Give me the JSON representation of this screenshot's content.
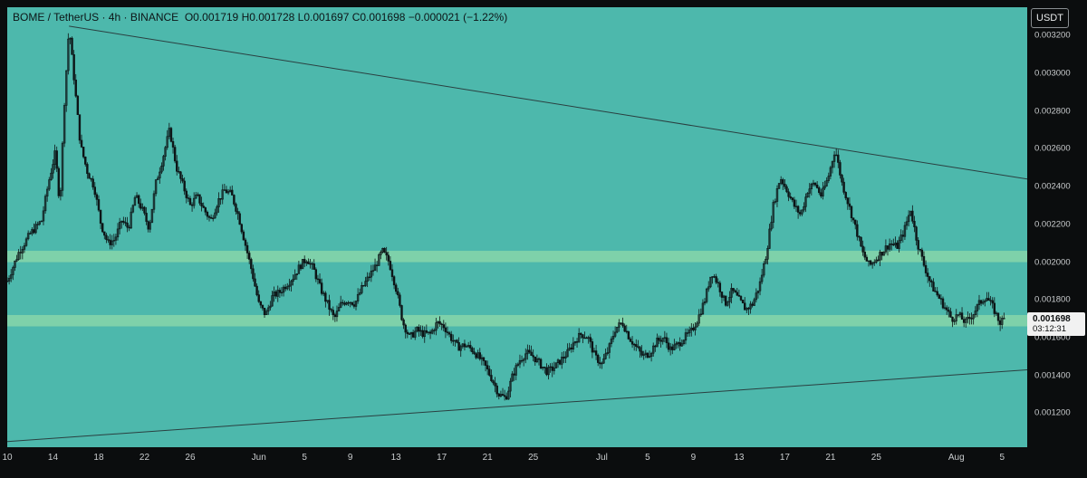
{
  "header": {
    "symbol": "BOME / TetherUS · 4h · BINANCE",
    "open": "O0.001719",
    "high": "H0.001728",
    "low": "L0.001697",
    "close": "C0.001698",
    "change": "−0.000021 (−1.22%)"
  },
  "currency_label": "USDT",
  "price_tag": {
    "price": "0.001698",
    "countdown": "03:12:31"
  },
  "colors": {
    "background": "#4db8ac",
    "zone": "#8fdaa9",
    "candles": "#0d1517",
    "trendline": "#2a3f40"
  },
  "chart_data": {
    "type": "candlestick",
    "ylim": [
      0.00102,
      0.00335
    ],
    "yticks": [
      "0.003200",
      "0.003000",
      "0.002800",
      "0.002600",
      "0.002400",
      "0.002200",
      "0.002000",
      "0.001800",
      "0.001600",
      "0.001400",
      "0.001200"
    ],
    "ytick_values": [
      0.0032,
      0.003,
      0.0028,
      0.0026,
      0.0024,
      0.0022,
      0.002,
      0.0018,
      0.0016,
      0.0014,
      0.0012
    ],
    "xtick_labels": [
      "10",
      "14",
      "18",
      "22",
      "26",
      "Jun",
      "5",
      "9",
      "13",
      "17",
      "21",
      "25",
      "Jul",
      "5",
      "9",
      "13",
      "17",
      "21",
      "25",
      "Aug",
      "5"
    ],
    "xtick_days": [
      0,
      4,
      8,
      12,
      16,
      22,
      26,
      30,
      34,
      38,
      42,
      46,
      52,
      56,
      60,
      64,
      68,
      72,
      76,
      83,
      87
    ],
    "x_range_days": [
      0,
      89.2
    ],
    "zones": [
      {
        "from": 0.002,
        "to": 0.00206
      },
      {
        "from": 0.00166,
        "to": 0.00172
      }
    ],
    "trendlines": [
      {
        "from": [
          5.4,
          0.00325
        ],
        "to": [
          89.2,
          0.00244
        ]
      },
      {
        "from": [
          0,
          0.00105
        ],
        "to": [
          89.2,
          0.00143
        ]
      }
    ],
    "price_path": [
      [
        0,
        0.0019
      ],
      [
        1,
        0.00205
      ],
      [
        2,
        0.00215
      ],
      [
        3,
        0.00222
      ],
      [
        3.6,
        0.00242
      ],
      [
        4.2,
        0.00258
      ],
      [
        4.6,
        0.0023
      ],
      [
        5.0,
        0.00285
      ],
      [
        5.4,
        0.00325
      ],
      [
        5.8,
        0.003
      ],
      [
        6.4,
        0.00262
      ],
      [
        7,
        0.00248
      ],
      [
        7.6,
        0.0024
      ],
      [
        8.2,
        0.0022
      ],
      [
        8.8,
        0.0021
      ],
      [
        9.4,
        0.00212
      ],
      [
        10,
        0.00222
      ],
      [
        10.6,
        0.00218
      ],
      [
        11.2,
        0.00235
      ],
      [
        11.8,
        0.00228
      ],
      [
        12.4,
        0.00218
      ],
      [
        13,
        0.00242
      ],
      [
        13.6,
        0.00255
      ],
      [
        14.2,
        0.0027
      ],
      [
        14.8,
        0.0025
      ],
      [
        15.4,
        0.0024
      ],
      [
        16,
        0.0023
      ],
      [
        16.6,
        0.00235
      ],
      [
        17.2,
        0.00228
      ],
      [
        17.8,
        0.00222
      ],
      [
        18.4,
        0.00232
      ],
      [
        19,
        0.00238
      ],
      [
        19.6,
        0.00236
      ],
      [
        20.2,
        0.00225
      ],
      [
        20.8,
        0.0021
      ],
      [
        21.4,
        0.00195
      ],
      [
        22,
        0.00178
      ],
      [
        22.6,
        0.00172
      ],
      [
        23.2,
        0.00182
      ],
      [
        23.8,
        0.00184
      ],
      [
        24.4,
        0.00188
      ],
      [
        25,
        0.00192
      ],
      [
        25.6,
        0.00198
      ],
      [
        26.2,
        0.00202
      ],
      [
        26.8,
        0.00196
      ],
      [
        27.4,
        0.00186
      ],
      [
        28,
        0.00178
      ],
      [
        28.6,
        0.0017
      ],
      [
        29.2,
        0.00178
      ],
      [
        29.8,
        0.0018
      ],
      [
        30.4,
        0.00178
      ],
      [
        31,
        0.00186
      ],
      [
        31.6,
        0.00192
      ],
      [
        32.2,
        0.00198
      ],
      [
        32.8,
        0.00206
      ],
      [
        33.4,
        0.002
      ],
      [
        34,
        0.00186
      ],
      [
        34.6,
        0.00168
      ],
      [
        35.2,
        0.0016
      ],
      [
        35.8,
        0.00164
      ],
      [
        36.4,
        0.00162
      ],
      [
        37,
        0.00162
      ],
      [
        37.6,
        0.00168
      ],
      [
        38.2,
        0.00166
      ],
      [
        38.8,
        0.0016
      ],
      [
        39.4,
        0.00155
      ],
      [
        40,
        0.00156
      ],
      [
        40.6,
        0.00154
      ],
      [
        41.2,
        0.0015
      ],
      [
        41.8,
        0.00145
      ],
      [
        42.4,
        0.00138
      ],
      [
        43,
        0.0013
      ],
      [
        43.6,
        0.00128
      ],
      [
        44.2,
        0.0014
      ],
      [
        44.8,
        0.00148
      ],
      [
        45.4,
        0.00152
      ],
      [
        46,
        0.0015
      ],
      [
        46.6,
        0.00146
      ],
      [
        47.2,
        0.00142
      ],
      [
        47.8,
        0.00144
      ],
      [
        48.4,
        0.00148
      ],
      [
        49,
        0.00152
      ],
      [
        49.6,
        0.00158
      ],
      [
        50.2,
        0.00162
      ],
      [
        50.8,
        0.0016
      ],
      [
        51.4,
        0.0015
      ],
      [
        52,
        0.00146
      ],
      [
        52.6,
        0.00154
      ],
      [
        53.2,
        0.00165
      ],
      [
        53.8,
        0.00168
      ],
      [
        54.4,
        0.0016
      ],
      [
        55,
        0.00155
      ],
      [
        55.6,
        0.0015
      ],
      [
        56.2,
        0.00152
      ],
      [
        56.8,
        0.00158
      ],
      [
        57.4,
        0.0016
      ],
      [
        58,
        0.00154
      ],
      [
        58.6,
        0.00156
      ],
      [
        59.2,
        0.0016
      ],
      [
        59.8,
        0.00163
      ],
      [
        60.4,
        0.0017
      ],
      [
        61,
        0.0018
      ],
      [
        61.6,
        0.00195
      ],
      [
        62.2,
        0.00188
      ],
      [
        62.8,
        0.00178
      ],
      [
        63.4,
        0.00185
      ],
      [
        64,
        0.0018
      ],
      [
        64.6,
        0.00175
      ],
      [
        65.2,
        0.00178
      ],
      [
        65.8,
        0.00188
      ],
      [
        66.4,
        0.00205
      ],
      [
        67,
        0.0023
      ],
      [
        67.6,
        0.00245
      ],
      [
        68.2,
        0.00238
      ],
      [
        68.8,
        0.0023
      ],
      [
        69.4,
        0.00225
      ],
      [
        70,
        0.00238
      ],
      [
        70.6,
        0.00242
      ],
      [
        71.2,
        0.00235
      ],
      [
        71.8,
        0.00245
      ],
      [
        72.4,
        0.0026
      ],
      [
        73,
        0.00242
      ],
      [
        73.6,
        0.0023
      ],
      [
        74.2,
        0.00218
      ],
      [
        74.8,
        0.00205
      ],
      [
        75.4,
        0.00198
      ],
      [
        76,
        0.00202
      ],
      [
        76.6,
        0.00206
      ],
      [
        77.2,
        0.0021
      ],
      [
        77.8,
        0.00208
      ],
      [
        78.4,
        0.00216
      ],
      [
        79,
        0.00228
      ],
      [
        79.6,
        0.0021
      ],
      [
        80.2,
        0.00198
      ],
      [
        80.8,
        0.00188
      ],
      [
        81.4,
        0.00182
      ],
      [
        82,
        0.00176
      ],
      [
        82.6,
        0.0017
      ],
      [
        83.2,
        0.00172
      ],
      [
        83.8,
        0.00168
      ],
      [
        84.4,
        0.00172
      ],
      [
        85,
        0.00178
      ],
      [
        85.6,
        0.00182
      ],
      [
        86.2,
        0.00176
      ],
      [
        86.8,
        0.00168
      ],
      [
        87.2,
        0.0017
      ]
    ]
  }
}
